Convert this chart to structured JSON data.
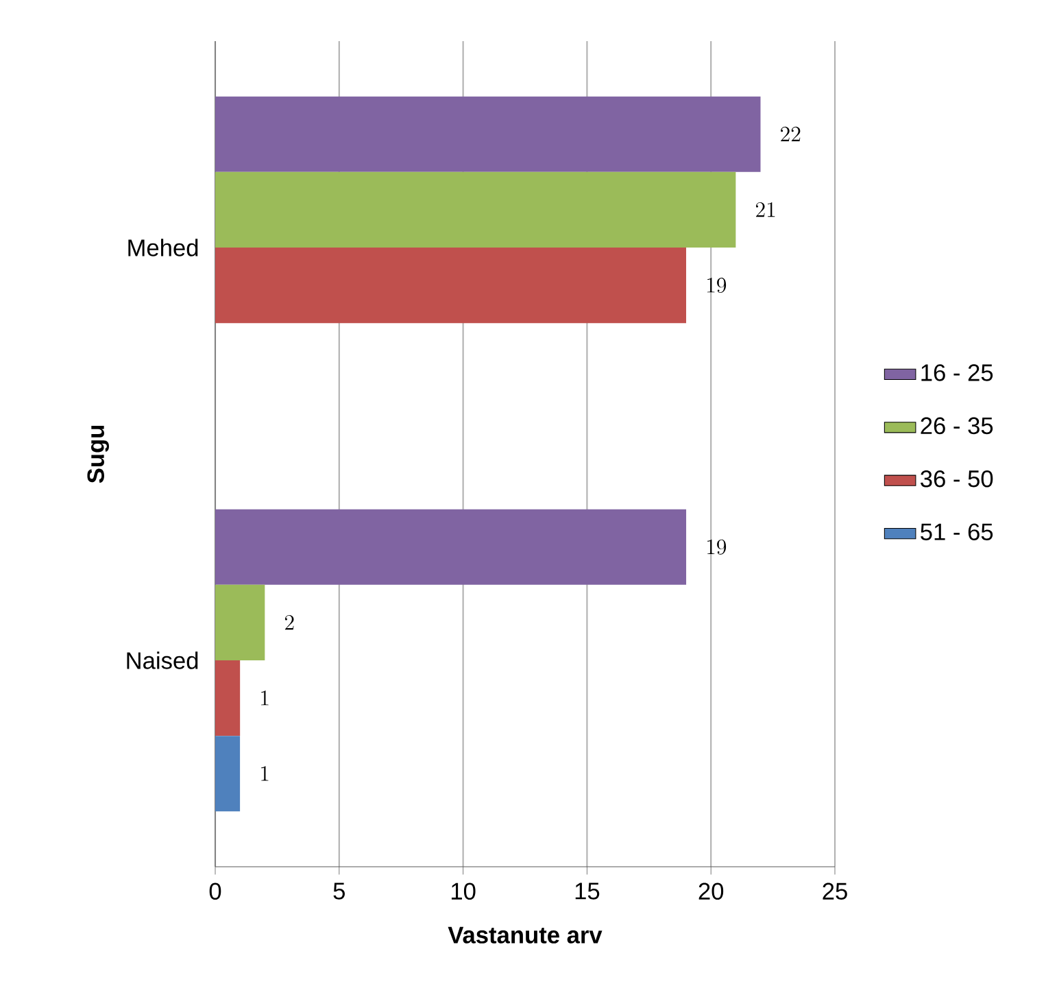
{
  "chart_data": {
    "type": "bar",
    "orientation": "horizontal",
    "xlabel": "Vastanute arv",
    "ylabel": "Sugu",
    "categories": [
      "Mehed",
      "Naised"
    ],
    "series": [
      {
        "name": "16 - 25",
        "color": "#8064a2",
        "values": [
          22,
          19
        ]
      },
      {
        "name": "26 - 35",
        "color": "#9bbb59",
        "values": [
          21,
          2
        ]
      },
      {
        "name": "36 - 50",
        "color": "#c0504d",
        "values": [
          19,
          1
        ]
      },
      {
        "name": "51 - 65",
        "color": "#4f81bd",
        "values": [
          null,
          1
        ]
      }
    ],
    "xlim": [
      0,
      25
    ],
    "xticks": [
      0,
      5,
      10,
      15,
      20,
      25
    ],
    "grid": "x",
    "legend": "right",
    "data_labels": true
  }
}
